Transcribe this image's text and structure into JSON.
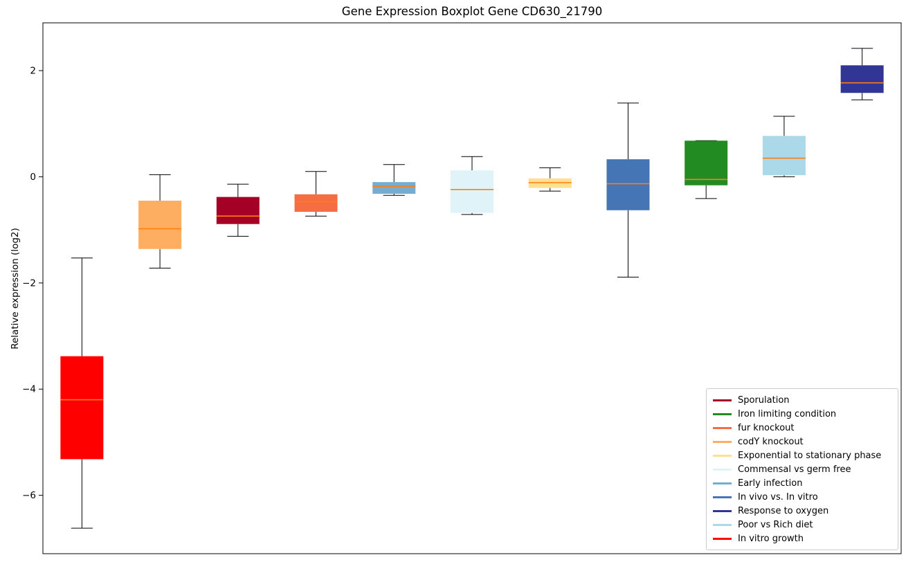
{
  "figure": {
    "title": "Gene Expression Boxplot Gene CD630_21790",
    "ylabel": "Relative expression (log2)"
  },
  "chart_data": {
    "type": "boxplot",
    "title": "Gene Expression Boxplot Gene CD630_21790",
    "xlabel": "",
    "ylabel": "Relative expression (log2)",
    "xlim": [
      0.5,
      11.5
    ],
    "ylim": [
      -7.1,
      2.9
    ],
    "grid": false,
    "legend_position": "lower right",
    "box_width": 0.55,
    "median_color": "#ff7f0e",
    "whisker_color": "#000000",
    "yticks": [
      {
        "value": 2,
        "label": "2"
      },
      {
        "value": 0,
        "label": "0"
      },
      {
        "value": -2,
        "label": "−2"
      },
      {
        "value": -4,
        "label": "−4"
      },
      {
        "value": -6,
        "label": "−6"
      }
    ],
    "boxes": [
      {
        "position": 1,
        "name": "In vitro growth",
        "color": "#ff0000",
        "whislo": -6.62,
        "q1": -5.32,
        "med": -4.2,
        "q3": -3.38,
        "whishi": -1.53
      },
      {
        "position": 2,
        "name": "codY knockout",
        "color": "#fdae61",
        "whislo": -1.72,
        "q1": -1.36,
        "med": -0.98,
        "q3": -0.45,
        "whishi": 0.04
      },
      {
        "position": 3,
        "name": "Sporulation",
        "color": "#a50026",
        "whislo": -1.12,
        "q1": -0.89,
        "med": -0.74,
        "q3": -0.38,
        "whishi": -0.14
      },
      {
        "position": 4,
        "name": "fur knockout",
        "color": "#f46d43",
        "whislo": -0.74,
        "q1": -0.66,
        "med": -0.47,
        "q3": -0.33,
        "whishi": 0.1
      },
      {
        "position": 5,
        "name": "Early infection",
        "color": "#74add1",
        "whislo": -0.35,
        "q1": -0.32,
        "med": -0.18,
        "q3": -0.1,
        "whishi": 0.23
      },
      {
        "position": 6,
        "name": "Commensal vs germ free",
        "color": "#e0f3f8",
        "whislo": -0.71,
        "q1": -0.68,
        "med": -0.24,
        "q3": 0.12,
        "whishi": 0.38
      },
      {
        "position": 7,
        "name": "Exponential to stationary phase",
        "color": "#fee090",
        "whislo": -0.27,
        "q1": -0.21,
        "med": -0.11,
        "q3": -0.03,
        "whishi": 0.17
      },
      {
        "position": 8,
        "name": "In vivo vs. In vitro",
        "color": "#4575b4",
        "whislo": -1.89,
        "q1": -0.63,
        "med": -0.13,
        "q3": 0.33,
        "whishi": 1.39
      },
      {
        "position": 9,
        "name": "Iron limiting condition",
        "color": "#228b22",
        "whislo": -0.41,
        "q1": -0.16,
        "med": -0.05,
        "q3": 0.68,
        "whishi": 0.68
      },
      {
        "position": 10,
        "name": "Poor vs Rich diet",
        "color": "#abd9e9",
        "whislo": 0.0,
        "q1": 0.03,
        "med": 0.35,
        "q3": 0.77,
        "whishi": 1.14
      },
      {
        "position": 11,
        "name": "Response to oxygen",
        "color": "#313695",
        "whislo": 1.45,
        "q1": 1.58,
        "med": 1.77,
        "q3": 2.1,
        "whishi": 2.42
      }
    ],
    "legend": [
      {
        "label": "Sporulation",
        "color": "#a50026"
      },
      {
        "label": "Iron limiting condition",
        "color": "#228b22"
      },
      {
        "label": "fur knockout",
        "color": "#f46d43"
      },
      {
        "label": "codY knockout",
        "color": "#fdae61"
      },
      {
        "label": "Exponential to stationary phase",
        "color": "#fee090"
      },
      {
        "label": "Commensal vs germ free",
        "color": "#e0f3f8"
      },
      {
        "label": "Early infection",
        "color": "#74add1"
      },
      {
        "label": "In vivo vs. In vitro",
        "color": "#4575b4"
      },
      {
        "label": "Response to oxygen",
        "color": "#313695"
      },
      {
        "label": "Poor vs Rich diet",
        "color": "#abd9e9"
      },
      {
        "label": "In vitro growth",
        "color": "#ff0000"
      }
    ]
  }
}
